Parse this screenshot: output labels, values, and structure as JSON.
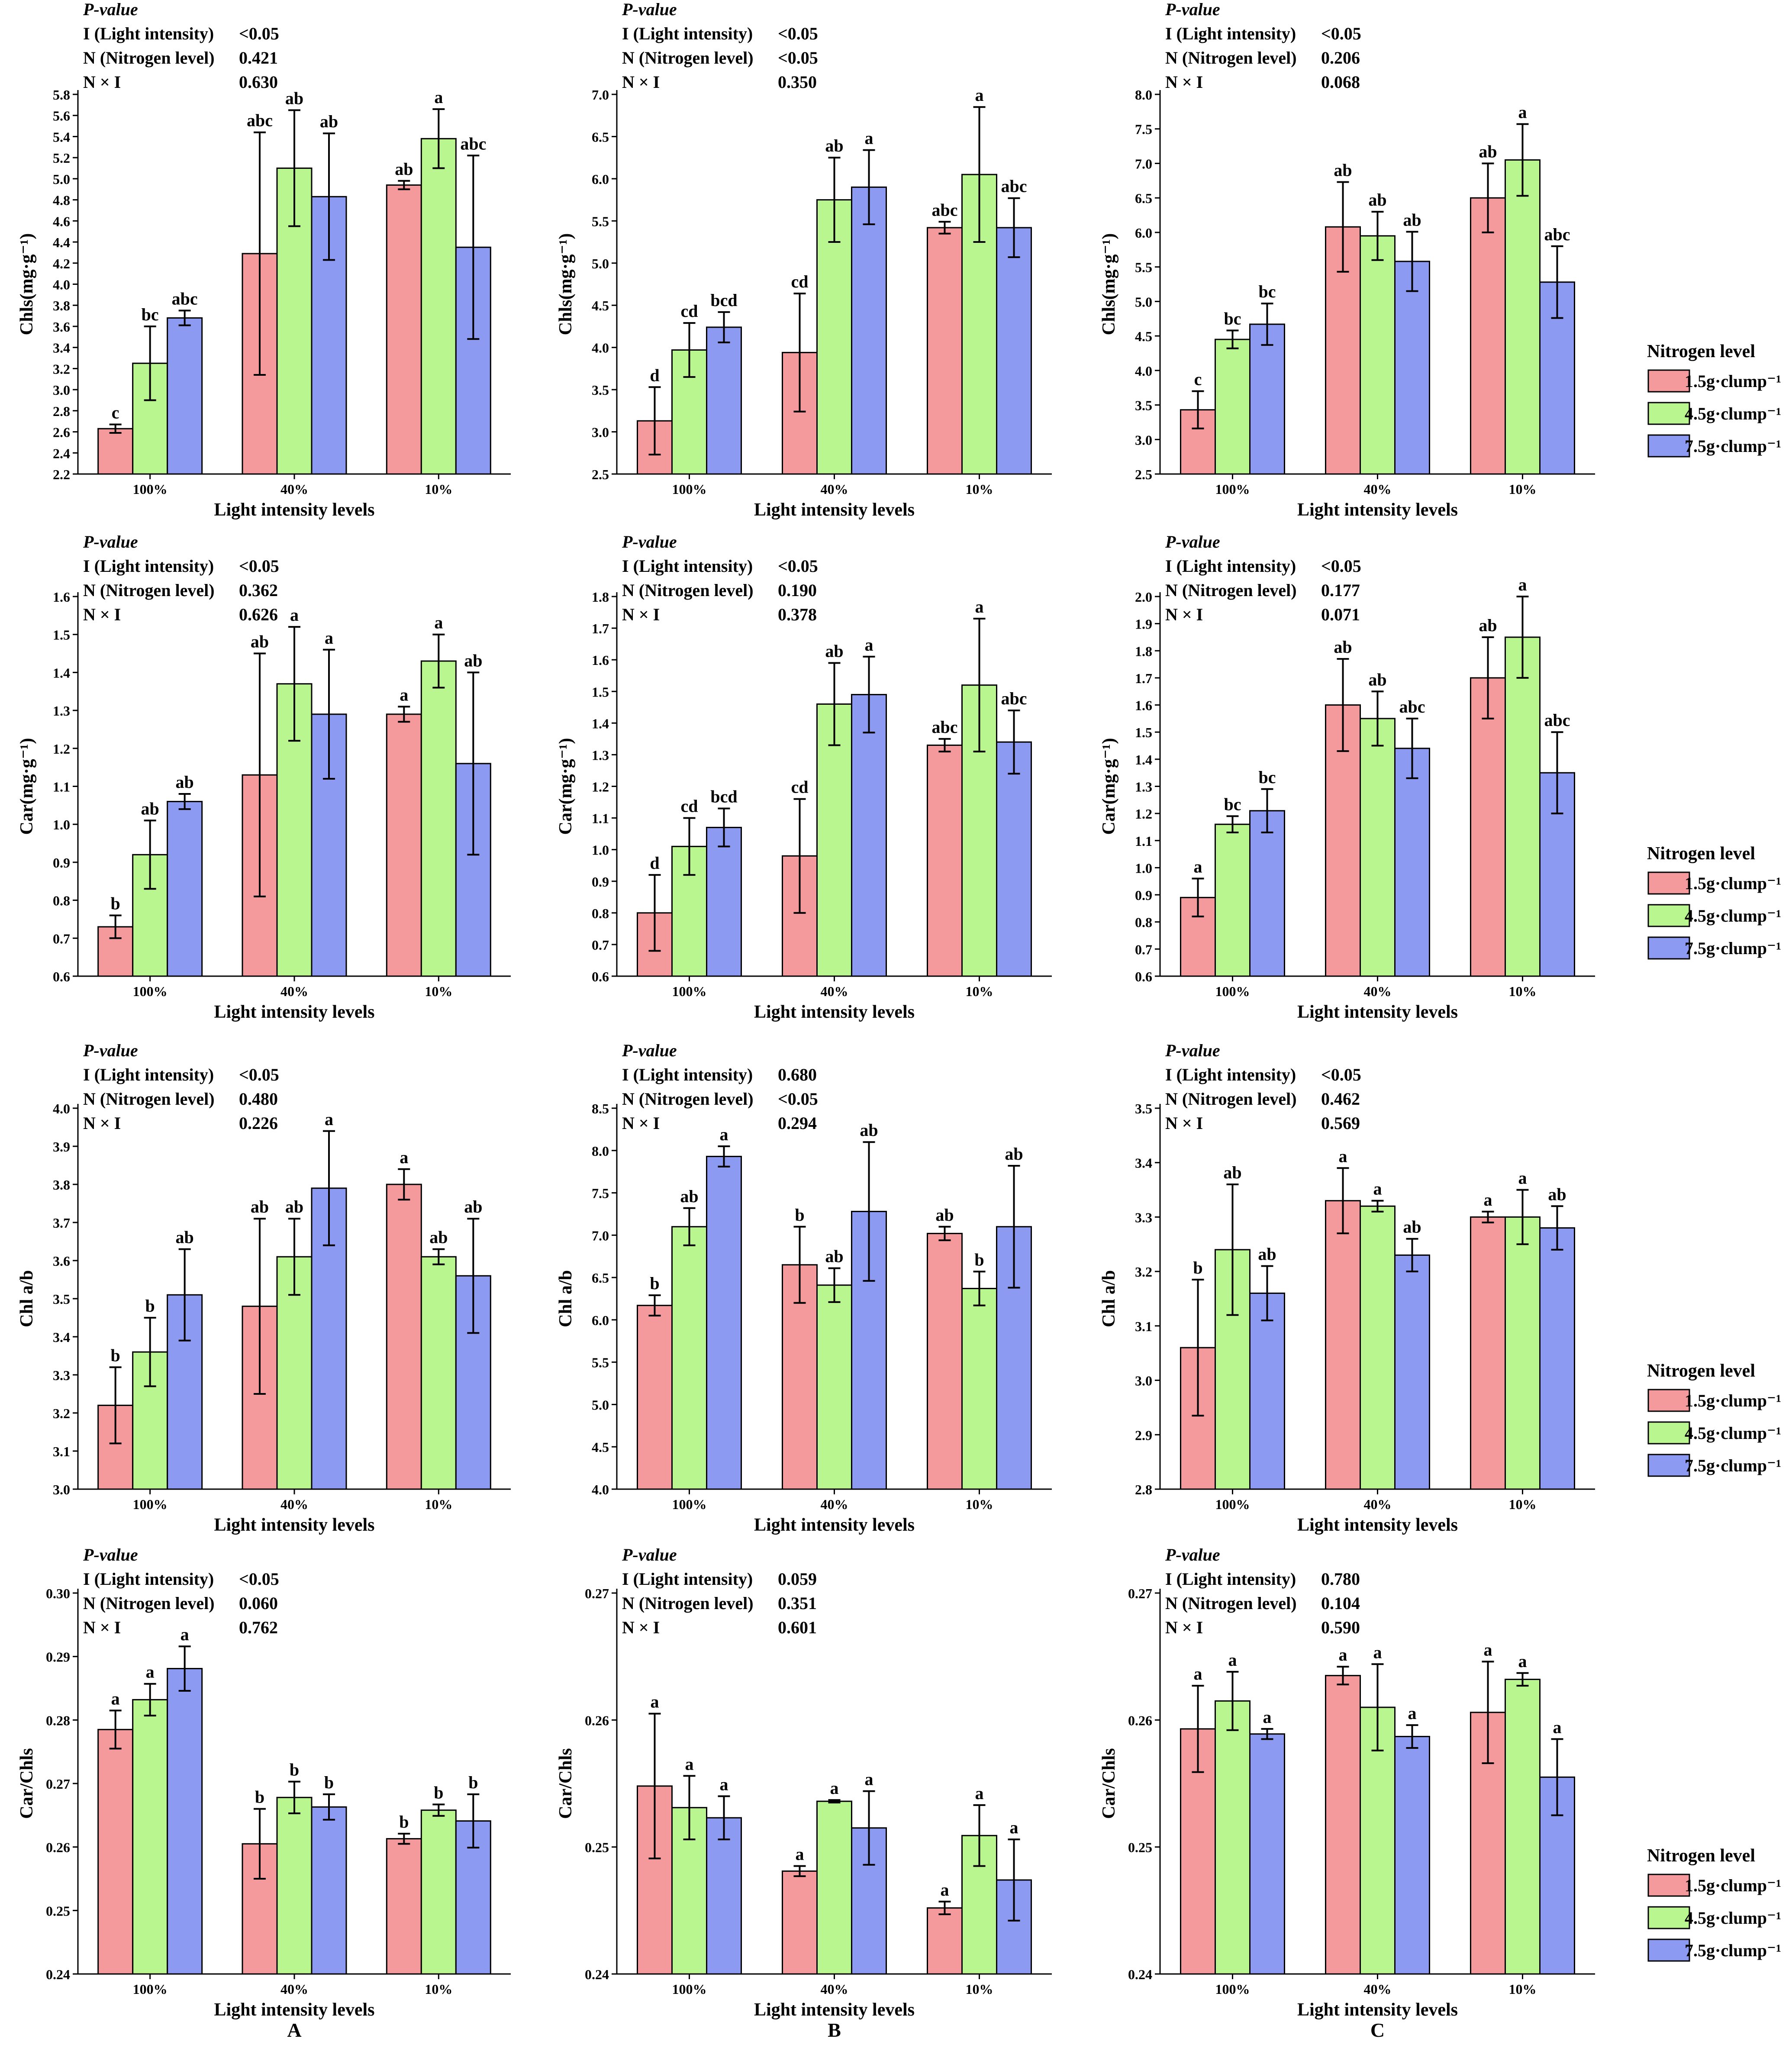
{
  "chart_data": [
    {
      "id": "A1",
      "type": "bar",
      "categories": [
        "100%",
        "40%",
        "10%"
      ],
      "xlabel": "Light intensity levels",
      "ylabel": "Chls(mg·g⁻¹)",
      "ylim": [
        2.2,
        5.8
      ],
      "ystep": 0.2,
      "ydec": 1,
      "pvalue_title": "P-value",
      "pvalues": [
        {
          "label": "I (Light intensity)",
          "value": "<0.05"
        },
        {
          "label": "N (Nitrogen level)",
          "value": "0.421"
        },
        {
          "label": "N × I",
          "value": "0.630"
        }
      ],
      "series": [
        {
          "name": "1.5g·clump⁻¹",
          "values": [
            2.63,
            4.29,
            4.94
          ],
          "errors": [
            0.04,
            1.15,
            0.04
          ],
          "letters": [
            "c",
            "abc",
            "ab"
          ]
        },
        {
          "name": "4.5g·clump⁻¹",
          "values": [
            3.25,
            5.1,
            5.38
          ],
          "errors": [
            0.35,
            0.55,
            0.28
          ],
          "letters": [
            "bc",
            "ab",
            "a"
          ]
        },
        {
          "name": "7.5g·clump⁻¹",
          "values": [
            3.68,
            4.83,
            4.35
          ],
          "errors": [
            0.07,
            0.6,
            0.87
          ],
          "letters": [
            "abc",
            "ab",
            "abc"
          ]
        }
      ]
    },
    {
      "id": "B1",
      "type": "bar",
      "categories": [
        "100%",
        "40%",
        "10%"
      ],
      "xlabel": "Light intensity levels",
      "ylabel": "Chls(mg·g⁻¹)",
      "ylim": [
        2.5,
        7.0
      ],
      "ystep": 0.5,
      "ydec": 1,
      "pvalue_title": "P-value",
      "pvalues": [
        {
          "label": "I (Light intensity)",
          "value": "<0.05"
        },
        {
          "label": "N (Nitrogen level)",
          "value": "<0.05"
        },
        {
          "label": "N × I",
          "value": "0.350"
        }
      ],
      "series": [
        {
          "name": "1.5g·clump⁻¹",
          "values": [
            3.13,
            3.94,
            5.42
          ],
          "errors": [
            0.4,
            0.7,
            0.07
          ],
          "letters": [
            "d",
            "cd",
            "abc"
          ]
        },
        {
          "name": "4.5g·clump⁻¹",
          "values": [
            3.97,
            5.75,
            6.05
          ],
          "errors": [
            0.32,
            0.5,
            0.8
          ],
          "letters": [
            "cd",
            "ab",
            "a"
          ]
        },
        {
          "name": "7.5g·clump⁻¹",
          "values": [
            4.24,
            5.9,
            5.42
          ],
          "errors": [
            0.18,
            0.44,
            0.35
          ],
          "letters": [
            "bcd",
            "a",
            "abc"
          ]
        }
      ]
    },
    {
      "id": "C1",
      "type": "bar",
      "categories": [
        "100%",
        "40%",
        "10%"
      ],
      "xlabel": "Light intensity levels",
      "ylabel": "Chls(mg·g⁻¹)",
      "ylim": [
        2.5,
        8.0
      ],
      "ystep": 0.5,
      "ydec": 1,
      "pvalue_title": "P-value",
      "pvalues": [
        {
          "label": "I (Light intensity)",
          "value": "<0.05"
        },
        {
          "label": "N (Nitrogen level)",
          "value": "0.206"
        },
        {
          "label": "N × I",
          "value": "0.068"
        }
      ],
      "series": [
        {
          "name": "1.5g·clump⁻¹",
          "values": [
            3.43,
            6.08,
            6.5
          ],
          "errors": [
            0.27,
            0.65,
            0.5
          ],
          "letters": [
            "c",
            "ab",
            "ab"
          ]
        },
        {
          "name": "4.5g·clump⁻¹",
          "values": [
            4.45,
            5.95,
            7.05
          ],
          "errors": [
            0.13,
            0.35,
            0.52
          ],
          "letters": [
            "bc",
            "ab",
            "a"
          ]
        },
        {
          "name": "7.5g·clump⁻¹",
          "values": [
            4.67,
            5.58,
            5.28
          ],
          "errors": [
            0.3,
            0.43,
            0.52
          ],
          "letters": [
            "bc",
            "ab",
            "abc"
          ]
        }
      ]
    },
    {
      "id": "A2",
      "type": "bar",
      "categories": [
        "100%",
        "40%",
        "10%"
      ],
      "xlabel": "Light intensity levels",
      "ylabel": "Car(mg·g⁻¹)",
      "ylim": [
        0.6,
        1.6
      ],
      "ystep": 0.1,
      "ydec": 1,
      "pvalue_title": "P-value",
      "pvalues": [
        {
          "label": "I (Light intensity)",
          "value": "<0.05"
        },
        {
          "label": "N (Nitrogen level)",
          "value": "0.362"
        },
        {
          "label": "N × I",
          "value": "0.626"
        }
      ],
      "series": [
        {
          "name": "1.5g·clump⁻¹",
          "values": [
            0.73,
            1.13,
            1.29
          ],
          "errors": [
            0.03,
            0.32,
            0.02
          ],
          "letters": [
            "b",
            "ab",
            "a"
          ]
        },
        {
          "name": "4.5g·clump⁻¹",
          "values": [
            0.92,
            1.37,
            1.43
          ],
          "errors": [
            0.09,
            0.15,
            0.07
          ],
          "letters": [
            "ab",
            "a",
            "a"
          ]
        },
        {
          "name": "7.5g·clump⁻¹",
          "values": [
            1.06,
            1.29,
            1.16
          ],
          "errors": [
            0.02,
            0.17,
            0.24
          ],
          "letters": [
            "ab",
            "a",
            "ab"
          ]
        }
      ]
    },
    {
      "id": "B2",
      "type": "bar",
      "categories": [
        "100%",
        "40%",
        "10%"
      ],
      "xlabel": "Light intensity levels",
      "ylabel": "Car(mg·g⁻¹)",
      "ylim": [
        0.6,
        1.8
      ],
      "ystep": 0.1,
      "ydec": 1,
      "pvalue_title": "P-value",
      "pvalues": [
        {
          "label": "I (Light intensity)",
          "value": "<0.05"
        },
        {
          "label": "N (Nitrogen level)",
          "value": "0.190"
        },
        {
          "label": "N × I",
          "value": "0.378"
        }
      ],
      "series": [
        {
          "name": "1.5g·clump⁻¹",
          "values": [
            0.8,
            0.98,
            1.33
          ],
          "errors": [
            0.12,
            0.18,
            0.02
          ],
          "letters": [
            "d",
            "cd",
            "abc"
          ]
        },
        {
          "name": "4.5g·clump⁻¹",
          "values": [
            1.01,
            1.46,
            1.52
          ],
          "errors": [
            0.09,
            0.13,
            0.21
          ],
          "letters": [
            "cd",
            "ab",
            "a"
          ]
        },
        {
          "name": "7.5g·clump⁻¹",
          "values": [
            1.07,
            1.49,
            1.34
          ],
          "errors": [
            0.06,
            0.12,
            0.1
          ],
          "letters": [
            "bcd",
            "a",
            "abc"
          ]
        }
      ]
    },
    {
      "id": "C2",
      "type": "bar",
      "categories": [
        "100%",
        "40%",
        "10%"
      ],
      "xlabel": "Light intensity levels",
      "ylabel": "Car(mg·g⁻¹)",
      "ylim": [
        0.6,
        2.0
      ],
      "ystep": 0.1,
      "ydec": 1,
      "pvalue_title": "P-value",
      "pvalues": [
        {
          "label": "I (Light intensity)",
          "value": "<0.05"
        },
        {
          "label": "N (Nitrogen level)",
          "value": "0.177"
        },
        {
          "label": "N × I",
          "value": "0.071"
        }
      ],
      "series": [
        {
          "name": "1.5g·clump⁻¹",
          "values": [
            0.89,
            1.6,
            1.7
          ],
          "errors": [
            0.07,
            0.17,
            0.15
          ],
          "letters": [
            "a",
            "ab",
            "ab"
          ]
        },
        {
          "name": "4.5g·clump⁻¹",
          "values": [
            1.16,
            1.55,
            1.85
          ],
          "errors": [
            0.03,
            0.1,
            0.15
          ],
          "letters": [
            "bc",
            "ab",
            "a"
          ]
        },
        {
          "name": "7.5g·clump⁻¹",
          "values": [
            1.21,
            1.44,
            1.35
          ],
          "errors": [
            0.08,
            0.11,
            0.15
          ],
          "letters": [
            "bc",
            "abc",
            "abc"
          ]
        }
      ]
    },
    {
      "id": "A3",
      "type": "bar",
      "categories": [
        "100%",
        "40%",
        "10%"
      ],
      "xlabel": "Light intensity levels",
      "ylabel": "Chl a/b",
      "ylim": [
        3.0,
        4.0
      ],
      "ystep": 0.1,
      "ydec": 1,
      "pvalue_title": "P-value",
      "pvalues": [
        {
          "label": "I (Light intensity)",
          "value": "<0.05"
        },
        {
          "label": "N (Nitrogen level)",
          "value": "0.480"
        },
        {
          "label": "N × I",
          "value": "0.226"
        }
      ],
      "series": [
        {
          "name": "1.5g·clump⁻¹",
          "values": [
            3.22,
            3.48,
            3.8
          ],
          "errors": [
            0.1,
            0.23,
            0.04
          ],
          "letters": [
            "b",
            "ab",
            "a"
          ]
        },
        {
          "name": "4.5g·clump⁻¹",
          "values": [
            3.36,
            3.61,
            3.61
          ],
          "errors": [
            0.09,
            0.1,
            0.02
          ],
          "letters": [
            "b",
            "ab",
            "ab"
          ]
        },
        {
          "name": "7.5g·clump⁻¹",
          "values": [
            3.51,
            3.79,
            3.56
          ],
          "errors": [
            0.12,
            0.15,
            0.15
          ],
          "letters": [
            "ab",
            "a",
            "ab"
          ]
        }
      ]
    },
    {
      "id": "B3",
      "type": "bar",
      "categories": [
        "100%",
        "40%",
        "10%"
      ],
      "xlabel": "Light intensity levels",
      "ylabel": "Chl a/b",
      "ylim": [
        4.0,
        8.5
      ],
      "ystep": 0.5,
      "ydec": 1,
      "pvalue_title": "P-value",
      "pvalues": [
        {
          "label": "I (Light intensity)",
          "value": "0.680"
        },
        {
          "label": "N (Nitrogen level)",
          "value": "<0.05"
        },
        {
          "label": "N × I",
          "value": "0.294"
        }
      ],
      "series": [
        {
          "name": "1.5g·clump⁻¹",
          "values": [
            6.17,
            6.65,
            7.02
          ],
          "errors": [
            0.12,
            0.45,
            0.08
          ],
          "letters": [
            "b",
            "b",
            "ab"
          ]
        },
        {
          "name": "4.5g·clump⁻¹",
          "values": [
            7.1,
            6.41,
            6.37
          ],
          "errors": [
            0.22,
            0.2,
            0.2
          ],
          "letters": [
            "ab",
            "ab",
            "b"
          ]
        },
        {
          "name": "7.5g·clump⁻¹",
          "values": [
            7.93,
            7.28,
            7.1
          ],
          "errors": [
            0.12,
            0.82,
            0.72
          ],
          "letters": [
            "a",
            "ab",
            "ab"
          ]
        }
      ]
    },
    {
      "id": "C3",
      "type": "bar",
      "categories": [
        "100%",
        "40%",
        "10%"
      ],
      "xlabel": "Light intensity levels",
      "ylabel": "Chl a/b",
      "ylim": [
        2.8,
        3.5
      ],
      "ystep": 0.1,
      "ydec": 1,
      "pvalue_title": "P-value",
      "pvalues": [
        {
          "label": "I (Light intensity)",
          "value": "<0.05"
        },
        {
          "label": "N (Nitrogen level)",
          "value": "0.462"
        },
        {
          "label": "N × I",
          "value": "0.569"
        }
      ],
      "series": [
        {
          "name": "1.5g·clump⁻¹",
          "values": [
            3.06,
            3.33,
            3.3
          ],
          "errors": [
            0.125,
            0.06,
            0.01
          ],
          "letters": [
            "b",
            "a",
            "a"
          ]
        },
        {
          "name": "4.5g·clump⁻¹",
          "values": [
            3.24,
            3.32,
            3.3
          ],
          "errors": [
            0.12,
            0.01,
            0.05
          ],
          "letters": [
            "ab",
            "a",
            "a"
          ]
        },
        {
          "name": "7.5g·clump⁻¹",
          "values": [
            3.16,
            3.23,
            3.28
          ],
          "errors": [
            0.05,
            0.03,
            0.04
          ],
          "letters": [
            "ab",
            "ab",
            "ab"
          ]
        }
      ]
    },
    {
      "id": "A4",
      "type": "bar",
      "categories": [
        "100%",
        "40%",
        "10%"
      ],
      "xlabel": "Light intensity levels",
      "ylabel": "Car/Chls",
      "ylim": [
        0.24,
        0.3
      ],
      "ystep": 0.01,
      "ydec": 2,
      "pvalue_title": "P-value",
      "pvalues": [
        {
          "label": "I (Light intensity)",
          "value": "<0.05"
        },
        {
          "label": "N (Nitrogen level)",
          "value": "0.060"
        },
        {
          "label": "N × I",
          "value": "0.762"
        }
      ],
      "series": [
        {
          "name": "1.5g·clump⁻¹",
          "values": [
            0.2785,
            0.2605,
            0.2613
          ],
          "errors": [
            0.003,
            0.0055,
            0.0008
          ],
          "letters": [
            "a",
            "b",
            "b"
          ]
        },
        {
          "name": "4.5g·clump⁻¹",
          "values": [
            0.2832,
            0.2678,
            0.2658
          ],
          "errors": [
            0.0025,
            0.0025,
            0.0009
          ],
          "letters": [
            "a",
            "b",
            "b"
          ]
        },
        {
          "name": "7.5g·clump⁻¹",
          "values": [
            0.2881,
            0.2663,
            0.2641
          ],
          "errors": [
            0.0035,
            0.002,
            0.0042
          ],
          "letters": [
            "a",
            "b",
            "b"
          ]
        }
      ]
    },
    {
      "id": "B4",
      "type": "bar",
      "categories": [
        "100%",
        "40%",
        "10%"
      ],
      "xlabel": "Light intensity levels",
      "ylabel": "Car/Chls",
      "ylim": [
        0.24,
        0.27
      ],
      "ystep": 0.01,
      "ydec": 2,
      "pvalue_title": "P-value",
      "pvalues": [
        {
          "label": "I (Light intensity)",
          "value": "0.059"
        },
        {
          "label": "N (Nitrogen level)",
          "value": "0.351"
        },
        {
          "label": "N × I",
          "value": "0.601"
        }
      ],
      "series": [
        {
          "name": "1.5g·clump⁻¹",
          "values": [
            0.2548,
            0.2481,
            0.2452
          ],
          "errors": [
            0.0057,
            0.0004,
            0.0005
          ],
          "letters": [
            "a",
            "a",
            "a"
          ]
        },
        {
          "name": "4.5g·clump⁻¹",
          "values": [
            0.2531,
            0.2536,
            0.2509
          ],
          "errors": [
            0.0025,
            0.0001,
            0.0024
          ],
          "letters": [
            "a",
            "a",
            "a"
          ]
        },
        {
          "name": "7.5g·clump⁻¹",
          "values": [
            0.2523,
            0.2515,
            0.2474
          ],
          "errors": [
            0.0017,
            0.0029,
            0.0032
          ],
          "letters": [
            "a",
            "a",
            "a"
          ]
        }
      ]
    },
    {
      "id": "C4",
      "type": "bar",
      "categories": [
        "100%",
        "40%",
        "10%"
      ],
      "xlabel": "Light intensity levels",
      "ylabel": "Car/Chls",
      "ylim": [
        0.24,
        0.27
      ],
      "ystep": 0.01,
      "ydec": 2,
      "pvalue_title": "P-value",
      "pvalues": [
        {
          "label": "I (Light intensity)",
          "value": "0.780"
        },
        {
          "label": "N (Nitrogen level)",
          "value": "0.104"
        },
        {
          "label": "N × I",
          "value": "0.590"
        }
      ],
      "series": [
        {
          "name": "1.5g·clump⁻¹",
          "values": [
            0.2593,
            0.2635,
            0.2606
          ],
          "errors": [
            0.0034,
            0.0007,
            0.004
          ],
          "letters": [
            "a",
            "a",
            "a"
          ]
        },
        {
          "name": "4.5g·clump⁻¹",
          "values": [
            0.2615,
            0.261,
            0.2632
          ],
          "errors": [
            0.0023,
            0.0034,
            0.0005
          ],
          "letters": [
            "a",
            "a",
            "a"
          ]
        },
        {
          "name": "7.5g·clump⁻¹",
          "values": [
            0.2589,
            0.2587,
            0.2555
          ],
          "errors": [
            0.0004,
            0.0009,
            0.003
          ],
          "letters": [
            "a",
            "a",
            "a"
          ]
        }
      ]
    }
  ],
  "legend": {
    "title": "Nitrogen level",
    "entries": [
      "1.5g·clump⁻¹",
      "4.5g·clump⁻¹",
      "7.5g·clump⁻¹"
    ]
  },
  "colors": {
    "series": [
      "#f4999c",
      "#b9f68f",
      "#8c9af2"
    ],
    "axis": "#000000"
  },
  "panel_labels": [
    "A",
    "B",
    "C"
  ]
}
